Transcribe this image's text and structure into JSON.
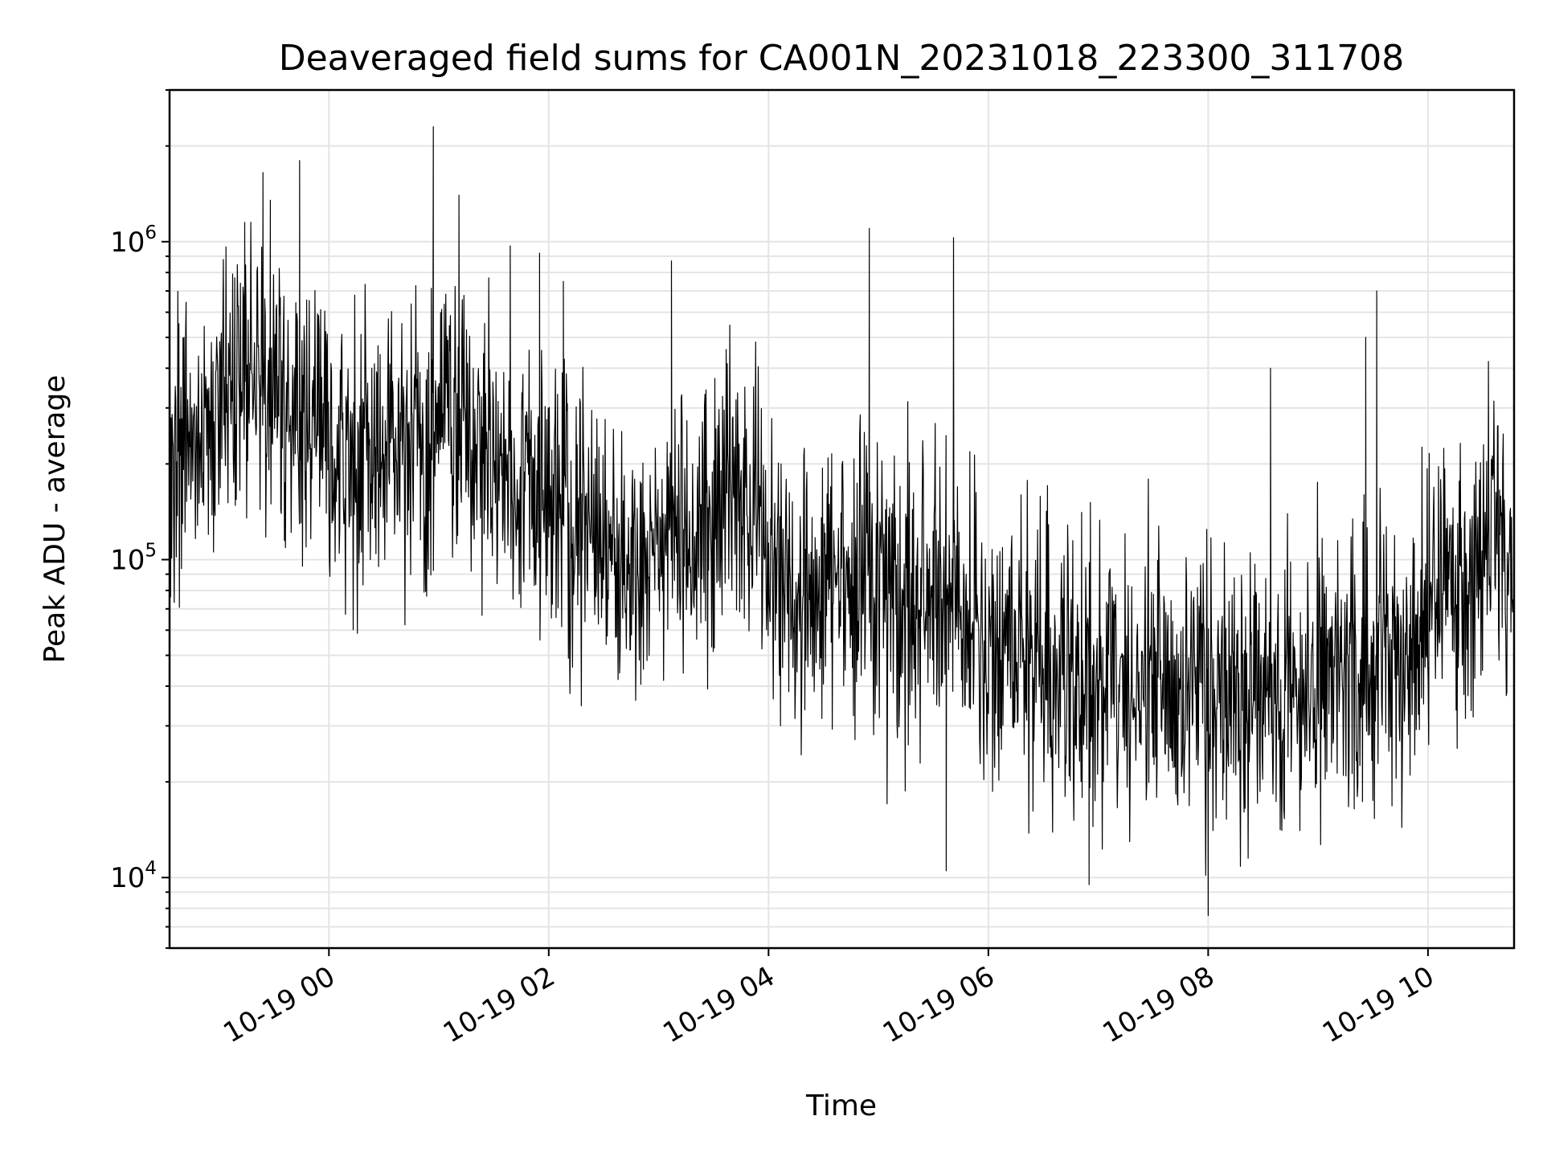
{
  "chart_data": {
    "type": "line",
    "title": "Deaveraged field sums for CA001N_20231018_223300_311708",
    "xlabel": "Time",
    "ylabel": "Peak ADU - average",
    "x_range": [
      "2023-10-18 22:33",
      "2023-10-19 10:47"
    ],
    "x_ticks": [
      {
        "t": "2023-10-19 00:00",
        "label": "10-19 00"
      },
      {
        "t": "2023-10-19 02:00",
        "label": "10-19 02"
      },
      {
        "t": "2023-10-19 04:00",
        "label": "10-19 04"
      },
      {
        "t": "2023-10-19 06:00",
        "label": "10-19 06"
      },
      {
        "t": "2023-10-19 08:00",
        "label": "10-19 08"
      },
      {
        "t": "2023-10-19 10:00",
        "label": "10-19 10"
      }
    ],
    "y_scale": "log",
    "ylim": [
      6000,
      3000000
    ],
    "y_ticks": [
      {
        "value": 10000,
        "base": "10",
        "exp": "4"
      },
      {
        "value": 100000,
        "base": "10",
        "exp": "5"
      },
      {
        "value": 1000000,
        "base": "10",
        "exp": "6"
      }
    ],
    "grid": true,
    "line_color": "#000000",
    "series": [
      {
        "values": [
          {
            "t": "2023-10-18 22:33",
            "y": 190000
          },
          {
            "t": "2023-10-18 22:48",
            "y": 260000
          },
          {
            "t": "2023-10-18 23:00",
            "y": 330000
          },
          {
            "t": "2023-10-18 23:10",
            "y": 420000
          },
          {
            "t": "2023-10-18 23:20",
            "y": 380000
          },
          {
            "t": "2023-10-18 23:30",
            "y": 320000
          },
          {
            "t": "2023-10-18 23:45",
            "y": 280000
          },
          {
            "t": "2023-10-19 00:00",
            "y": 230000
          },
          {
            "t": "2023-10-19 00:15",
            "y": 190000
          },
          {
            "t": "2023-10-19 00:30",
            "y": 210000
          },
          {
            "t": "2023-10-19 00:45",
            "y": 240000
          },
          {
            "t": "2023-10-19 01:00",
            "y": 270000
          },
          {
            "t": "2023-10-19 01:10",
            "y": 300000
          },
          {
            "t": "2023-10-19 01:20",
            "y": 220000
          },
          {
            "t": "2023-10-19 01:30",
            "y": 200000
          },
          {
            "t": "2023-10-19 01:45",
            "y": 170000
          },
          {
            "t": "2023-10-19 02:00",
            "y": 140000
          },
          {
            "t": "2023-10-19 02:15",
            "y": 120000
          },
          {
            "t": "2023-10-19 02:30",
            "y": 110000
          },
          {
            "t": "2023-10-19 02:45",
            "y": 105000
          },
          {
            "t": "2023-10-19 03:00",
            "y": 110000
          },
          {
            "t": "2023-10-19 03:15",
            "y": 125000
          },
          {
            "t": "2023-10-19 03:30",
            "y": 140000
          },
          {
            "t": "2023-10-19 03:45",
            "y": 160000
          },
          {
            "t": "2023-10-19 03:55",
            "y": 150000
          },
          {
            "t": "2023-10-19 04:00",
            "y": 100000
          },
          {
            "t": "2023-10-19 04:20",
            "y": 75000
          },
          {
            "t": "2023-10-19 04:40",
            "y": 80000
          },
          {
            "t": "2023-10-19 05:00",
            "y": 85000
          },
          {
            "t": "2023-10-19 05:20",
            "y": 75000
          },
          {
            "t": "2023-10-19 05:40",
            "y": 70000
          },
          {
            "t": "2023-10-19 06:00",
            "y": 60000
          },
          {
            "t": "2023-10-19 06:20",
            "y": 52000
          },
          {
            "t": "2023-10-19 06:40",
            "y": 45000
          },
          {
            "t": "2023-10-19 07:00",
            "y": 42000
          },
          {
            "t": "2023-10-19 07:20",
            "y": 40000
          },
          {
            "t": "2023-10-19 07:40",
            "y": 38000
          },
          {
            "t": "2023-10-19 08:00",
            "y": 36000
          },
          {
            "t": "2023-10-19 08:20",
            "y": 38000
          },
          {
            "t": "2023-10-19 08:40",
            "y": 40000
          },
          {
            "t": "2023-10-19 09:00",
            "y": 42000
          },
          {
            "t": "2023-10-19 09:20",
            "y": 45000
          },
          {
            "t": "2023-10-19 09:40",
            "y": 50000
          },
          {
            "t": "2023-10-19 10:00",
            "y": 60000
          },
          {
            "t": "2023-10-19 10:20",
            "y": 80000
          },
          {
            "t": "2023-10-19 10:35",
            "y": 120000
          },
          {
            "t": "2023-10-19 10:47",
            "y": 100000
          }
        ],
        "spikes": [
          {
            "t": "2023-10-18 23:14",
            "y": 1150000
          },
          {
            "t": "2023-10-18 23:24",
            "y": 1650000
          },
          {
            "t": "2023-10-18 23:28",
            "y": 1350000
          },
          {
            "t": "2023-10-18 23:44",
            "y": 1800000
          },
          {
            "t": "2023-10-19 00:57",
            "y": 2300000
          },
          {
            "t": "2023-10-19 01:11",
            "y": 1400000
          },
          {
            "t": "2023-10-19 01:39",
            "y": 970000
          },
          {
            "t": "2023-10-19 01:55",
            "y": 920000
          },
          {
            "t": "2023-10-19 02:08",
            "y": 750000
          },
          {
            "t": "2023-10-19 03:07",
            "y": 870000
          },
          {
            "t": "2023-10-19 04:55",
            "y": 1100000
          },
          {
            "t": "2023-10-19 05:41",
            "y": 1030000
          },
          {
            "t": "2023-10-19 08:34",
            "y": 400000
          },
          {
            "t": "2023-10-19 09:26",
            "y": 500000
          },
          {
            "t": "2023-10-19 09:32",
            "y": 700000
          },
          {
            "t": "2023-10-19 10:33",
            "y": 420000
          },
          {
            "t": "2023-10-19 08:00",
            "y": 7600
          },
          {
            "t": "2023-10-19 06:55",
            "y": 9500
          },
          {
            "t": "2023-10-19 05:37",
            "y": 10500
          }
        ]
      }
    ]
  }
}
